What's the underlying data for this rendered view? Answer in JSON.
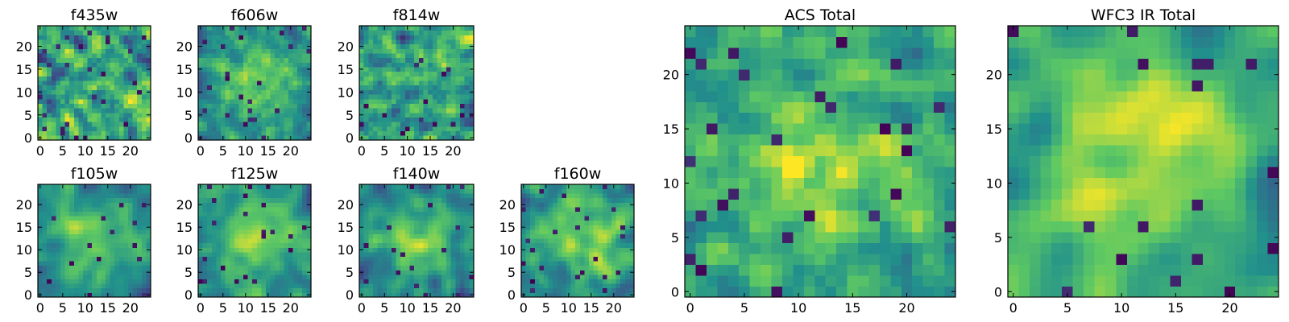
{
  "figure_title": "",
  "colormap": [
    "#440154",
    "#3b528b",
    "#21918c",
    "#5ec962",
    "#fde725"
  ],
  "chart_data": [
    {
      "type": "heatmap",
      "title": "f435w",
      "grid_size": 25,
      "xlim": [
        0,
        24
      ],
      "ylim": [
        0,
        24
      ],
      "xticks": [
        0,
        5,
        10,
        15,
        20
      ],
      "yticks": [
        0,
        5,
        10,
        15,
        20
      ],
      "seed": 11,
      "bias": 0.0,
      "smooth": 0.15,
      "pattern": "noise"
    },
    {
      "type": "heatmap",
      "title": "f606w",
      "grid_size": 25,
      "xlim": [
        0,
        24
      ],
      "ylim": [
        0,
        24
      ],
      "xticks": [
        0,
        5,
        10,
        15,
        20
      ],
      "yticks": [
        0,
        5,
        10,
        15,
        20
      ],
      "seed": 23,
      "bias": 0.05,
      "smooth": 0.2,
      "pattern": "center"
    },
    {
      "type": "heatmap",
      "title": "f814w",
      "grid_size": 25,
      "xlim": [
        0,
        24
      ],
      "ylim": [
        0,
        24
      ],
      "xticks": [
        0,
        5,
        10,
        15,
        20
      ],
      "yticks": [
        0,
        5,
        10,
        15,
        20
      ],
      "seed": 37,
      "bias": 0.0,
      "smooth": 0.15,
      "pattern": "noise"
    },
    {
      "type": "heatmap",
      "title": "f105w",
      "grid_size": 25,
      "xlim": [
        0,
        24
      ],
      "ylim": [
        0,
        24
      ],
      "xticks": [
        0,
        5,
        10,
        15,
        20
      ],
      "yticks": [
        0,
        5,
        10,
        15,
        20
      ],
      "seed": 41,
      "bias": 0.0,
      "smooth": 0.5,
      "pattern": "center"
    },
    {
      "type": "heatmap",
      "title": "f125w",
      "grid_size": 25,
      "xlim": [
        0,
        24
      ],
      "ylim": [
        0,
        24
      ],
      "xticks": [
        0,
        5,
        10,
        15,
        20
      ],
      "yticks": [
        0,
        5,
        10,
        15,
        20
      ],
      "seed": 53,
      "bias": 0.05,
      "smooth": 0.5,
      "pattern": "center"
    },
    {
      "type": "heatmap",
      "title": "f140w",
      "grid_size": 25,
      "xlim": [
        0,
        24
      ],
      "ylim": [
        0,
        24
      ],
      "xticks": [
        0,
        5,
        10,
        15,
        20
      ],
      "yticks": [
        0,
        5,
        10,
        15,
        20
      ],
      "seed": 67,
      "bias": 0.0,
      "smooth": 0.5,
      "pattern": "center"
    },
    {
      "type": "heatmap",
      "title": "f160w",
      "grid_size": 25,
      "xlim": [
        0,
        24
      ],
      "ylim": [
        0,
        24
      ],
      "xticks": [
        0,
        5,
        10,
        15,
        20
      ],
      "yticks": [
        0,
        5,
        10,
        15,
        20
      ],
      "seed": 79,
      "bias": 0.05,
      "smooth": 0.45,
      "pattern": "center"
    },
    {
      "type": "heatmap",
      "title": "ACS Total",
      "grid_size": 25,
      "xlim": [
        0,
        24
      ],
      "ylim": [
        0,
        24
      ],
      "xticks": [
        0,
        5,
        10,
        15,
        20
      ],
      "yticks": [
        0,
        5,
        10,
        15,
        20
      ],
      "seed": 97,
      "bias": 0.1,
      "smooth": 0.25,
      "pattern": "center"
    },
    {
      "type": "heatmap",
      "title": "WFC3 IR Total",
      "grid_size": 25,
      "xlim": [
        0,
        24
      ],
      "ylim": [
        0,
        24
      ],
      "xticks": [
        0,
        5,
        10,
        15,
        20
      ],
      "yticks": [
        0,
        5,
        10,
        15,
        20
      ],
      "seed": 113,
      "bias": 0.1,
      "smooth": 0.65,
      "pattern": "center"
    }
  ]
}
